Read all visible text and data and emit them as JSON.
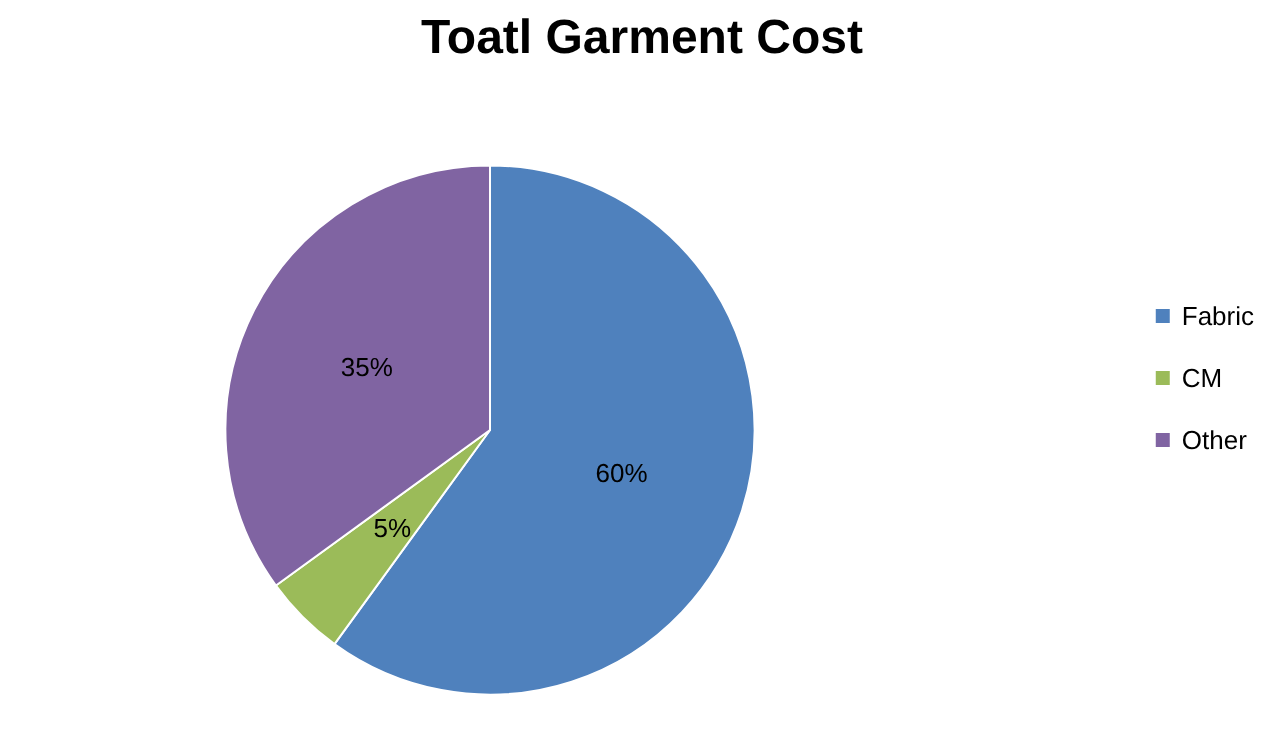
{
  "chart_data": {
    "type": "pie",
    "title": "Toatl Garment Cost",
    "categories": [
      "Fabric",
      "CM",
      "Other"
    ],
    "values": [
      60,
      5,
      35
    ],
    "colors": [
      "#4f81bd",
      "#9bbb59",
      "#8064a2"
    ],
    "value_labels": [
      "60%",
      "5%",
      "35%"
    ],
    "legend": "right"
  }
}
